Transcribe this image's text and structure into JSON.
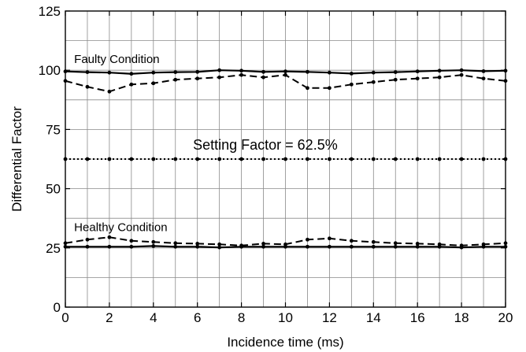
{
  "chart_data": {
    "type": "line",
    "title": "",
    "xlabel": "Incidence time (ms)",
    "ylabel": "Differential Factor",
    "xlim": [
      0,
      20
    ],
    "ylim": [
      0,
      125
    ],
    "x_ticks": [
      0,
      2,
      4,
      6,
      8,
      10,
      12,
      14,
      16,
      18,
      20
    ],
    "y_ticks": [
      0,
      25,
      50,
      75,
      100,
      125
    ],
    "x_tick_labels": [
      "0",
      "2",
      "4",
      "6",
      "8",
      "10",
      "12",
      "14",
      "16",
      "18",
      "20"
    ],
    "y_tick_labels": [
      "0",
      "25",
      "50",
      "75",
      "100",
      "125"
    ],
    "grid": true,
    "legend": "none",
    "x": [
      0,
      1,
      2,
      3,
      4,
      5,
      6,
      7,
      8,
      9,
      10,
      11,
      12,
      13,
      14,
      15,
      16,
      17,
      18,
      19,
      20
    ],
    "series": [
      {
        "style": "solid",
        "color": "#000000",
        "values": [
          99.5,
          99.2,
          99.0,
          98.5,
          99.0,
          99.2,
          99.3,
          100.0,
          99.8,
          99.3,
          99.5,
          99.3,
          99.0,
          98.6,
          99.0,
          99.2,
          99.5,
          99.8,
          100.0,
          99.6,
          99.8
        ]
      },
      {
        "style": "dashed",
        "color": "#000000",
        "values": [
          95.5,
          93.0,
          91.0,
          94.0,
          94.5,
          96.0,
          96.5,
          97.0,
          98.0,
          97.0,
          98.0,
          92.5,
          92.5,
          94.0,
          95.0,
          96.0,
          96.5,
          97.0,
          98.0,
          96.5,
          95.5
        ]
      },
      {
        "style": "dotted",
        "color": "#000000",
        "values": [
          62.5,
          62.5,
          62.5,
          62.5,
          62.5,
          62.5,
          62.5,
          62.5,
          62.5,
          62.5,
          62.5,
          62.5,
          62.5,
          62.5,
          62.5,
          62.5,
          62.5,
          62.5,
          62.5,
          62.5,
          62.5
        ]
      },
      {
        "style": "dashed",
        "color": "#000000",
        "values": [
          27.0,
          28.5,
          29.5,
          28.0,
          27.5,
          27.0,
          26.8,
          26.5,
          26.0,
          26.8,
          26.5,
          28.5,
          29.0,
          28.0,
          27.5,
          27.0,
          26.8,
          26.5,
          26.0,
          26.5,
          27.0
        ]
      },
      {
        "style": "solid",
        "color": "#000000",
        "values": [
          25.5,
          25.5,
          25.5,
          25.5,
          25.8,
          25.5,
          25.5,
          25.2,
          25.5,
          25.5,
          25.5,
          25.5,
          25.5,
          25.5,
          25.5,
          25.5,
          25.5,
          25.5,
          25.2,
          25.5,
          25.5
        ]
      }
    ],
    "annotations": [
      {
        "text": "Faulty Condition",
        "x": 0.4,
        "y": 103
      },
      {
        "text": "Setting Factor = 62.5%",
        "x": 5.8,
        "y": 66.5,
        "large": true
      },
      {
        "text": "Healthy Condition",
        "x": 0.4,
        "y": 32
      }
    ]
  }
}
